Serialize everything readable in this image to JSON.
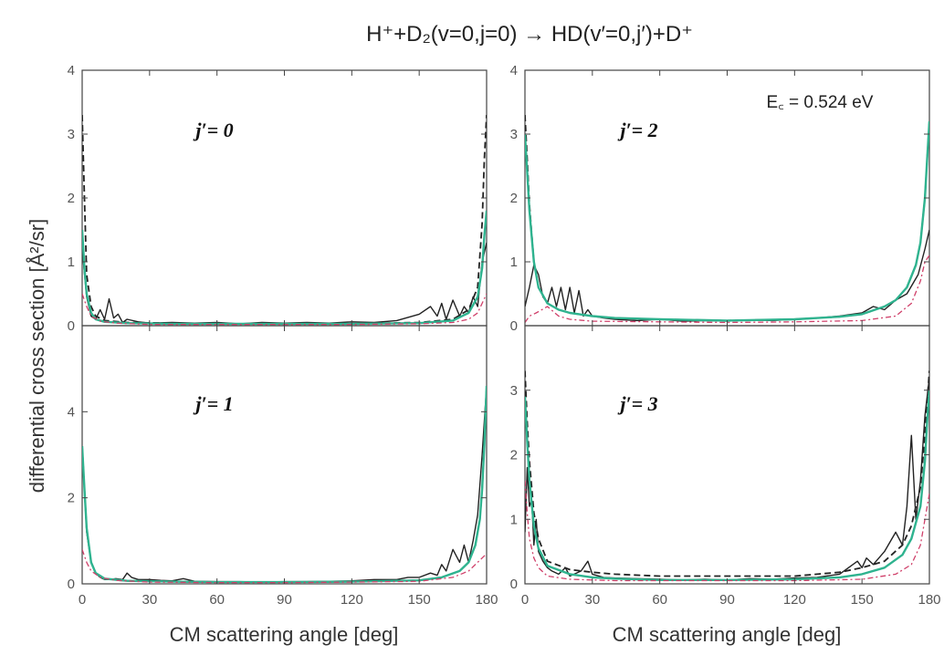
{
  "figure": {
    "title": "H⁺+D₂(v=0,j=0) → HD(v′=0,j′)+D⁺",
    "ylabel": "differential cross section [Å²/sr]",
    "xlabels": [
      "CM scattering angle [deg]",
      "CM scattering angle [deg]"
    ],
    "energy_label": "E꜀ = 0.524 eV",
    "colors": {
      "black": "#222222",
      "green": "#2fb38f",
      "red": "#d0406a",
      "frame": "#444444"
    }
  },
  "chart_data": [
    {
      "type": "line",
      "title": "j′= 0",
      "xlim": [
        0,
        180
      ],
      "ylim": [
        0,
        4
      ],
      "xticks": [],
      "yticks": [
        0,
        1,
        2,
        3,
        4
      ],
      "series": [
        {
          "style": "solid-black",
          "x": [
            0,
            2,
            4,
            6,
            8,
            10,
            12,
            14,
            16,
            18,
            20,
            25,
            30,
            40,
            50,
            60,
            70,
            80,
            90,
            100,
            110,
            120,
            130,
            140,
            150,
            155,
            158,
            160,
            162,
            165,
            168,
            170,
            172,
            174,
            176,
            178,
            180
          ],
          "y": [
            1.2,
            0.45,
            0.15,
            0.1,
            0.25,
            0.1,
            0.42,
            0.12,
            0.18,
            0.05,
            0.1,
            0.06,
            0.04,
            0.05,
            0.04,
            0.05,
            0.03,
            0.05,
            0.04,
            0.05,
            0.04,
            0.06,
            0.05,
            0.08,
            0.18,
            0.3,
            0.15,
            0.35,
            0.1,
            0.4,
            0.15,
            0.3,
            0.2,
            0.45,
            0.3,
            1.0,
            1.3
          ]
        },
        {
          "style": "dashed-black",
          "x": [
            0,
            1,
            2,
            4,
            6,
            10,
            20,
            40,
            60,
            90,
            120,
            150,
            165,
            172,
            176,
            178,
            179,
            180
          ],
          "y": [
            3.3,
            2.0,
            0.8,
            0.3,
            0.15,
            0.08,
            0.05,
            0.04,
            0.03,
            0.03,
            0.03,
            0.05,
            0.1,
            0.25,
            0.6,
            1.6,
            2.6,
            3.3
          ]
        },
        {
          "style": "solid-green",
          "x": [
            0,
            1,
            2,
            4,
            6,
            10,
            20,
            40,
            60,
            90,
            120,
            150,
            165,
            172,
            176,
            178,
            179,
            180
          ],
          "y": [
            1.5,
            0.9,
            0.5,
            0.2,
            0.1,
            0.06,
            0.04,
            0.03,
            0.03,
            0.03,
            0.03,
            0.04,
            0.08,
            0.2,
            0.45,
            0.9,
            1.4,
            1.8
          ]
        },
        {
          "style": "dashdot-red",
          "x": [
            0,
            2,
            4,
            8,
            15,
            30,
            60,
            90,
            120,
            150,
            165,
            172,
            176,
            178,
            180
          ],
          "y": [
            0.5,
            0.3,
            0.15,
            0.07,
            0.04,
            0.02,
            0.02,
            0.02,
            0.02,
            0.03,
            0.05,
            0.1,
            0.2,
            0.35,
            0.5
          ]
        }
      ]
    },
    {
      "type": "line",
      "title": "j′= 2",
      "xlim": [
        0,
        180
      ],
      "ylim": [
        0,
        4
      ],
      "xticks": [],
      "yticks": [
        0,
        1,
        2,
        3,
        4
      ],
      "series": [
        {
          "style": "solid-black",
          "x": [
            0,
            2,
            4,
            6,
            8,
            10,
            12,
            14,
            16,
            18,
            20,
            22,
            24,
            26,
            28,
            30,
            35,
            40,
            50,
            60,
            70,
            80,
            90,
            100,
            110,
            120,
            130,
            140,
            150,
            155,
            160,
            165,
            170,
            175,
            178,
            180
          ],
          "y": [
            0.3,
            0.6,
            0.95,
            0.8,
            0.45,
            0.35,
            0.6,
            0.3,
            0.6,
            0.25,
            0.6,
            0.2,
            0.55,
            0.15,
            0.25,
            0.15,
            0.12,
            0.1,
            0.08,
            0.1,
            0.07,
            0.08,
            0.07,
            0.09,
            0.08,
            0.1,
            0.12,
            0.15,
            0.2,
            0.3,
            0.25,
            0.4,
            0.5,
            0.8,
            1.2,
            1.5
          ]
        },
        {
          "style": "dashed-black",
          "x": [
            0,
            1,
            2,
            4,
            6,
            10,
            15,
            20,
            30,
            40,
            60,
            90,
            120,
            140,
            150,
            160,
            165,
            170,
            174,
            176,
            178,
            179,
            180
          ],
          "y": [
            3.3,
            2.6,
            1.9,
            1.0,
            0.6,
            0.35,
            0.25,
            0.2,
            0.15,
            0.12,
            0.1,
            0.08,
            0.1,
            0.14,
            0.18,
            0.3,
            0.4,
            0.6,
            0.95,
            1.3,
            2.0,
            2.6,
            3.2
          ]
        },
        {
          "style": "solid-green",
          "x": [
            0,
            1,
            2,
            4,
            6,
            10,
            15,
            20,
            30,
            40,
            60,
            90,
            120,
            140,
            150,
            160,
            165,
            170,
            174,
            176,
            178,
            179,
            180
          ],
          "y": [
            3.0,
            2.4,
            1.8,
            1.0,
            0.6,
            0.35,
            0.25,
            0.2,
            0.15,
            0.12,
            0.1,
            0.08,
            0.1,
            0.14,
            0.18,
            0.3,
            0.4,
            0.6,
            0.95,
            1.3,
            2.0,
            2.6,
            3.2
          ]
        },
        {
          "style": "dashdot-red",
          "x": [
            0,
            2,
            5,
            10,
            15,
            20,
            30,
            60,
            90,
            120,
            150,
            165,
            172,
            176,
            178,
            180
          ],
          "y": [
            0.05,
            0.15,
            0.2,
            0.3,
            0.15,
            0.1,
            0.07,
            0.06,
            0.05,
            0.06,
            0.08,
            0.15,
            0.35,
            0.7,
            1.0,
            1.1
          ]
        }
      ]
    },
    {
      "type": "line",
      "title": "j′= 1",
      "xlim": [
        0,
        180
      ],
      "ylim": [
        0,
        6
      ],
      "xticks": [
        0,
        30,
        60,
        90,
        120,
        150,
        180
      ],
      "yticks": [
        0,
        2,
        4
      ],
      "series": [
        {
          "style": "solid-black",
          "x": [
            0,
            1,
            2,
            4,
            6,
            8,
            10,
            12,
            15,
            18,
            20,
            22,
            25,
            30,
            35,
            40,
            45,
            50,
            60,
            70,
            80,
            90,
            100,
            110,
            120,
            130,
            140,
            145,
            150,
            155,
            158,
            160,
            162,
            165,
            168,
            170,
            172,
            174,
            176,
            178,
            180
          ],
          "y": [
            3.2,
            2.2,
            1.2,
            0.5,
            0.25,
            0.15,
            0.1,
            0.1,
            0.12,
            0.1,
            0.25,
            0.15,
            0.1,
            0.1,
            0.08,
            0.07,
            0.12,
            0.06,
            0.05,
            0.05,
            0.04,
            0.05,
            0.05,
            0.06,
            0.07,
            0.1,
            0.1,
            0.15,
            0.15,
            0.25,
            0.2,
            0.45,
            0.3,
            0.8,
            0.5,
            0.9,
            0.5,
            1.0,
            1.6,
            3.0,
            4.6
          ]
        },
        {
          "style": "dashed-black",
          "x": [
            0,
            1,
            2,
            4,
            6,
            10,
            20,
            40,
            60,
            90,
            120,
            150,
            160,
            168,
            172,
            175,
            177,
            178,
            179,
            180
          ],
          "y": [
            3.2,
            2.2,
            1.3,
            0.5,
            0.25,
            0.12,
            0.07,
            0.05,
            0.04,
            0.04,
            0.05,
            0.08,
            0.15,
            0.3,
            0.5,
            0.9,
            1.5,
            2.2,
            3.2,
            4.6
          ]
        },
        {
          "style": "solid-green",
          "x": [
            0,
            1,
            2,
            4,
            6,
            10,
            20,
            40,
            60,
            90,
            120,
            150,
            160,
            168,
            172,
            175,
            177,
            178,
            179,
            180
          ],
          "y": [
            3.2,
            2.2,
            1.3,
            0.5,
            0.25,
            0.12,
            0.07,
            0.05,
            0.04,
            0.04,
            0.05,
            0.08,
            0.15,
            0.3,
            0.5,
            0.9,
            1.5,
            2.2,
            3.2,
            4.6
          ]
        },
        {
          "style": "dashdot-red",
          "x": [
            0,
            2,
            4,
            8,
            15,
            30,
            60,
            90,
            120,
            150,
            165,
            172,
            176,
            178,
            180
          ],
          "y": [
            0.8,
            0.5,
            0.3,
            0.15,
            0.08,
            0.04,
            0.03,
            0.03,
            0.04,
            0.06,
            0.15,
            0.3,
            0.5,
            0.6,
            0.7
          ]
        }
      ]
    },
    {
      "type": "line",
      "title": "j′= 3",
      "xlim": [
        0,
        180
      ],
      "ylim": [
        0,
        4
      ],
      "xticks": [
        0,
        30,
        60,
        90,
        120,
        150,
        180
      ],
      "yticks": [
        0,
        1,
        2,
        3
      ],
      "series": [
        {
          "style": "solid-black",
          "x": [
            0,
            1,
            2,
            3,
            4,
            5,
            6,
            8,
            10,
            12,
            15,
            18,
            20,
            25,
            28,
            30,
            35,
            40,
            50,
            60,
            70,
            80,
            90,
            100,
            110,
            120,
            130,
            140,
            148,
            150,
            152,
            155,
            160,
            165,
            168,
            170,
            172,
            174,
            176,
            178,
            180
          ],
          "y": [
            0.8,
            1.8,
            1.2,
            1.3,
            0.6,
            1.0,
            0.5,
            0.35,
            0.25,
            0.2,
            0.15,
            0.25,
            0.12,
            0.2,
            0.35,
            0.15,
            0.1,
            0.09,
            0.08,
            0.07,
            0.06,
            0.07,
            0.06,
            0.08,
            0.07,
            0.09,
            0.1,
            0.15,
            0.35,
            0.25,
            0.4,
            0.3,
            0.5,
            0.8,
            0.6,
            1.2,
            2.3,
            1.0,
            1.6,
            2.6,
            3.2
          ]
        },
        {
          "style": "dashed-black",
          "x": [
            0,
            1,
            2,
            4,
            6,
            10,
            20,
            30,
            40,
            60,
            90,
            120,
            140,
            150,
            160,
            168,
            172,
            176,
            178,
            179,
            180
          ],
          "y": [
            3.3,
            2.5,
            1.9,
            1.1,
            0.7,
            0.35,
            0.22,
            0.18,
            0.15,
            0.12,
            0.12,
            0.12,
            0.18,
            0.25,
            0.35,
            0.6,
            0.9,
            1.5,
            2.3,
            2.8,
            3.3
          ]
        },
        {
          "style": "solid-green",
          "x": [
            0,
            1,
            2,
            4,
            6,
            10,
            20,
            30,
            40,
            60,
            90,
            120,
            140,
            150,
            160,
            168,
            172,
            176,
            178,
            179,
            180
          ],
          "y": [
            2.9,
            2.2,
            1.6,
            0.9,
            0.55,
            0.28,
            0.15,
            0.1,
            0.08,
            0.06,
            0.06,
            0.07,
            0.1,
            0.15,
            0.25,
            0.45,
            0.7,
            1.2,
            1.9,
            2.5,
            3.0
          ]
        },
        {
          "style": "dashdot-red",
          "x": [
            0,
            1,
            2,
            4,
            6,
            10,
            20,
            40,
            60,
            90,
            120,
            150,
            165,
            172,
            176,
            178,
            180
          ],
          "y": [
            1.6,
            1.1,
            0.7,
            0.4,
            0.25,
            0.12,
            0.07,
            0.05,
            0.05,
            0.05,
            0.05,
            0.07,
            0.15,
            0.3,
            0.6,
            1.0,
            1.4
          ]
        }
      ]
    }
  ]
}
